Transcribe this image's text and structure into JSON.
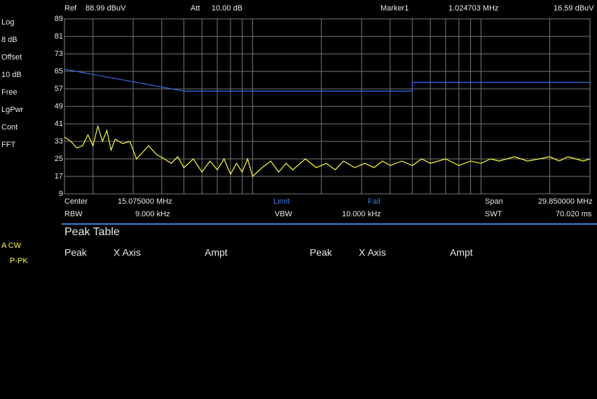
{
  "header": {
    "ref_label": "Ref",
    "ref_value": "88.99 dBuV",
    "att_label": "Att",
    "att_value": "10.00 dB",
    "marker_label": "Marker1",
    "marker_freq": "1.024703 MHz",
    "marker_ampt": "16.59 dBuV"
  },
  "sidebar": [
    "Log",
    "8 dB",
    "Offset",
    "10 dB",
    "Free",
    "LgPwr",
    "Cont",
    "FFT"
  ],
  "trace_info": [
    "A CW",
    "P-PK"
  ],
  "footer": {
    "center_label": "Center",
    "center_value": "15.075000 MHz",
    "limit": "Limit",
    "fail": "Fail",
    "span_label": "Span",
    "span_value": "29.850000 MHz",
    "rbw_label": "RBW",
    "rbw_value": "9.000 kHz",
    "vbw_label": "VBW",
    "vbw_value": "10.000 kHz",
    "swt_label": "SWT",
    "swt_value": "70.020 ms"
  },
  "peak_table": {
    "title": "Peak Table",
    "columns": [
      "Peak",
      "X Axis",
      "Ampt",
      "Peak",
      "X Axis",
      "Ampt"
    ]
  },
  "chart_data": {
    "type": "line",
    "log_x": true,
    "grid": true,
    "xlim": [
      0.15,
      30
    ],
    "ylim": [
      9,
      89
    ],
    "yticks": [
      9,
      17,
      25,
      33,
      41,
      49,
      57,
      65,
      73,
      81,
      89
    ],
    "xticks": [
      0.2,
      0.3,
      0.4,
      0.5,
      0.6,
      0.7,
      0.8,
      0.9,
      1,
      2,
      3,
      4,
      5,
      6,
      7,
      8,
      9,
      10,
      20
    ],
    "series": [
      {
        "color": "#ffff33",
        "x": [
          0.15,
          0.16,
          0.17,
          0.18,
          0.19,
          0.2,
          0.21,
          0.22,
          0.23,
          0.24,
          0.25,
          0.27,
          0.29,
          0.31,
          0.33,
          0.35,
          0.38,
          0.41,
          0.44,
          0.47,
          0.5,
          0.55,
          0.6,
          0.65,
          0.7,
          0.75,
          0.8,
          0.85,
          0.9,
          0.95,
          1.0,
          1.1,
          1.2,
          1.3,
          1.4,
          1.5,
          1.7,
          1.9,
          2.1,
          2.3,
          2.5,
          2.8,
          3.1,
          3.4,
          3.7,
          4.0,
          4.5,
          5.0,
          5.5,
          6.0,
          7.0,
          8.0,
          9.0,
          10,
          11,
          12,
          14,
          16,
          18,
          20,
          22,
          24,
          26,
          28,
          30
        ],
        "values": [
          35,
          33,
          30,
          31,
          36,
          31,
          40,
          33,
          38,
          29,
          34,
          32,
          33,
          25,
          28,
          31,
          27,
          25,
          23,
          26,
          21,
          25,
          19,
          24,
          20,
          25,
          18,
          23,
          19,
          25,
          17,
          21,
          24,
          19,
          23,
          20,
          25,
          21,
          23,
          20,
          24,
          21,
          23,
          21,
          24,
          22,
          24,
          22,
          25,
          23,
          25,
          22,
          24,
          23,
          25,
          24,
          26,
          24,
          25,
          26,
          24,
          26,
          25,
          24,
          25
        ]
      },
      {
        "color": "#3a6cf0",
        "x": [
          0.15,
          0.5,
          5,
          5,
          30
        ],
        "values": [
          66,
          56,
          56,
          60,
          60
        ]
      }
    ]
  }
}
